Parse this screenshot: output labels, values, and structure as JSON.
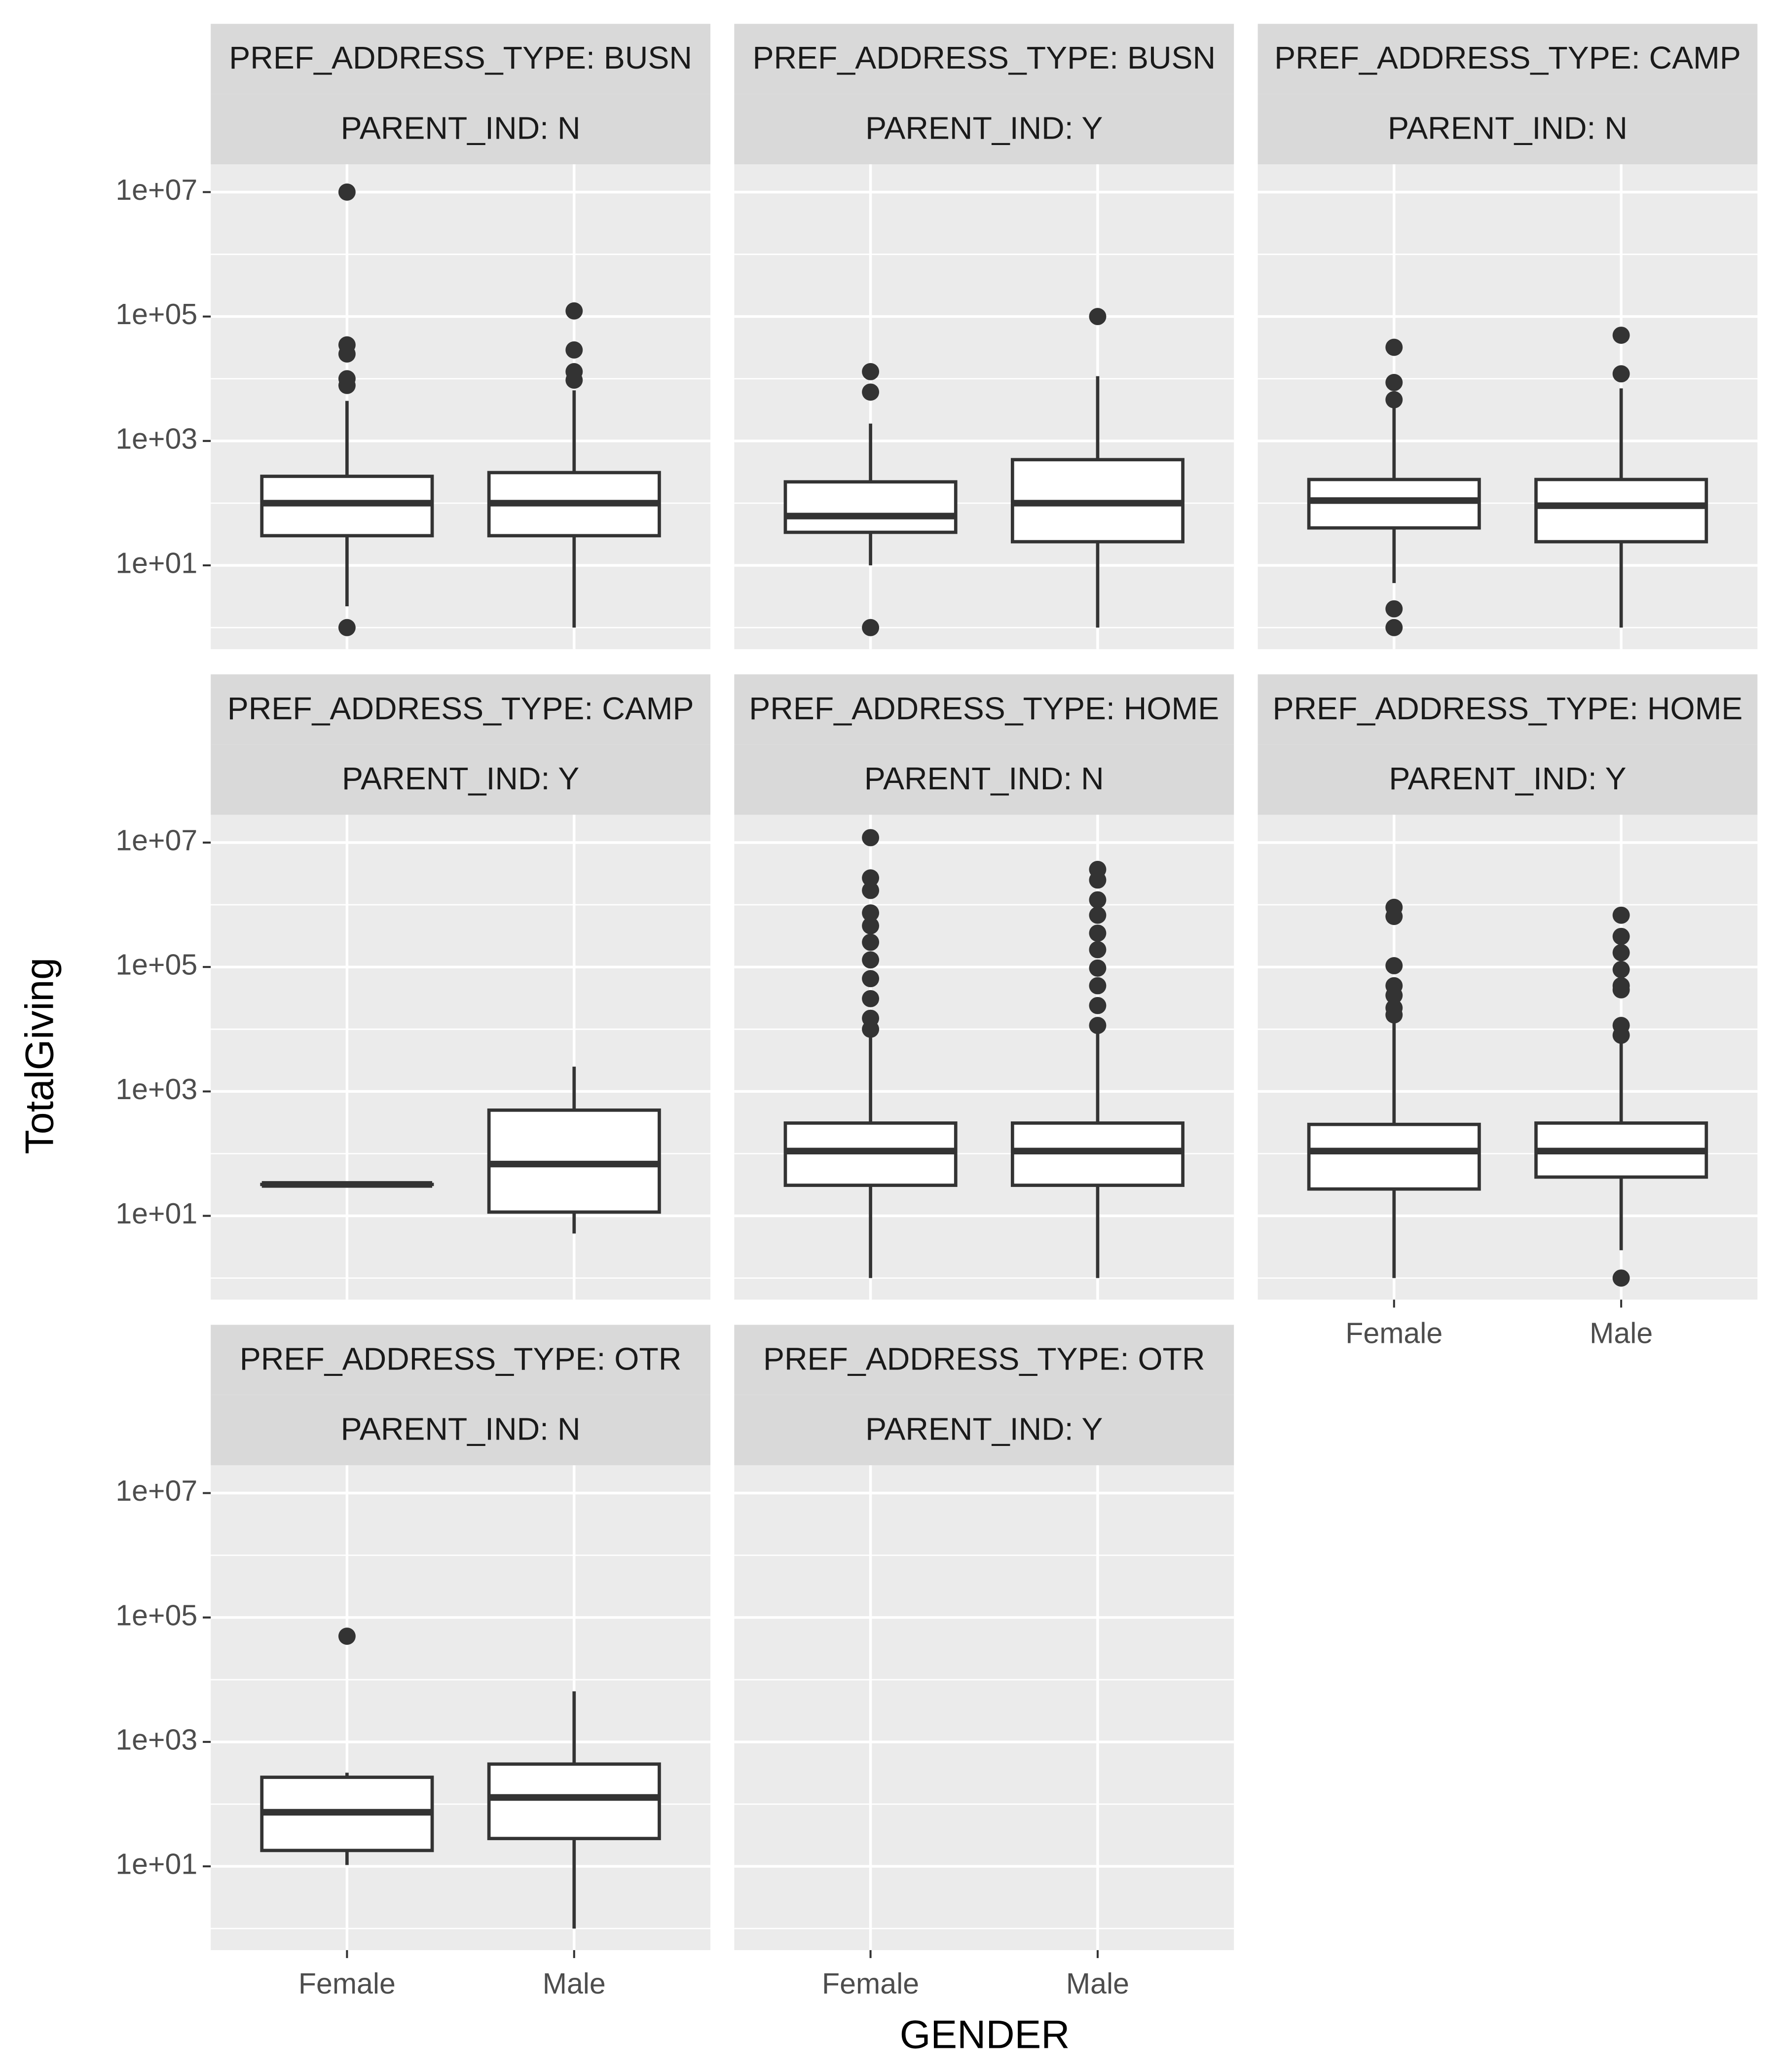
{
  "chart_data": {
    "type": "boxplot",
    "x_label": "GENDER",
    "y_label": "TotalGiving",
    "categories": [
      "Female",
      "Male"
    ],
    "log_scale": true,
    "grid": true,
    "ylim": [
      0.45,
      28000000
    ],
    "yticks": [
      {
        "value": 10,
        "label": "1e+01"
      },
      {
        "value": 1000,
        "label": "1e+03"
      },
      {
        "value": 100000,
        "label": "1e+05"
      },
      {
        "value": 10000000,
        "label": "1e+07"
      }
    ],
    "box_color": "#333333",
    "box_fill": "#ffffff",
    "panels": [
      {
        "strip": [
          "PREF_ADDRESS_TYPE: BUSN",
          "PARENT_IND: N"
        ],
        "boxes": [
          {
            "min": 2.2,
            "q1": 30,
            "median": 100,
            "q3": 270,
            "max": 4400,
            "outliers": [
              10000000,
              35000,
              25000,
              10000,
              7800,
              1
            ]
          },
          {
            "min": 1,
            "q1": 30,
            "median": 100,
            "q3": 310,
            "max": 6500,
            "outliers": [
              123000,
              29000,
              13000,
              9500
            ]
          }
        ]
      },
      {
        "strip": [
          "PREF_ADDRESS_TYPE: BUSN",
          "PARENT_IND: Y"
        ],
        "boxes": [
          {
            "min": 10,
            "q1": 34,
            "median": 62,
            "q3": 220,
            "max": 1900,
            "outliers": [
              13000,
              6100,
              1
            ]
          },
          {
            "min": 1,
            "q1": 24,
            "median": 100,
            "q3": 500,
            "max": 11000,
            "outliers": [
              100000
            ]
          }
        ]
      },
      {
        "strip": [
          "PREF_ADDRESS_TYPE: CAMP",
          "PARENT_IND: N"
        ],
        "boxes": [
          {
            "min": 5.2,
            "q1": 40,
            "median": 110,
            "q3": 240,
            "max": 4000,
            "outliers": [
              32000,
              8700,
              4600,
              2,
              1
            ]
          },
          {
            "min": 1,
            "q1": 24,
            "median": 91,
            "q3": 240,
            "max": 7000,
            "outliers": [
              50000,
              12000
            ]
          }
        ]
      },
      {
        "strip": [
          "PREF_ADDRESS_TYPE: CAMP",
          "PARENT_IND: Y"
        ],
        "boxes": [
          {
            "min": 32,
            "q1": 32,
            "median": 32,
            "q3": 32,
            "max": 32,
            "outliers": []
          },
          {
            "min": 5.2,
            "q1": 11.5,
            "median": 68,
            "q3": 500,
            "max": 2500,
            "outliers": []
          }
        ]
      },
      {
        "strip": [
          "PREF_ADDRESS_TYPE: HOME",
          "PARENT_IND: N"
        ],
        "boxes": [
          {
            "min": 1,
            "q1": 31,
            "median": 110,
            "q3": 310,
            "max": 9000,
            "outliers": [
              12000000,
              2700000,
              1700000,
              740000,
              460000,
              250000,
              130000,
              65000,
              31000,
              15000,
              10000
            ]
          },
          {
            "min": 1,
            "q1": 31,
            "median": 110,
            "q3": 310,
            "max": 9000,
            "outliers": [
              3700000,
              2500000,
              1200000,
              680000,
              350000,
              190000,
              96000,
              50000,
              24000,
              11500
            ]
          }
        ]
      },
      {
        "strip": [
          "PREF_ADDRESS_TYPE: HOME",
          "PARENT_IND: Y"
        ],
        "boxes": [
          {
            "min": 1,
            "q1": 27,
            "median": 110,
            "q3": 295,
            "max": 13500,
            "outliers": [
              910000,
              650000,
              105000,
              50000,
              35000,
              22000,
              17000
            ]
          },
          {
            "min": 2.8,
            "q1": 42,
            "median": 110,
            "q3": 310,
            "max": 6500,
            "outliers": [
              680000,
              310000,
              170000,
              91000,
              50000,
              43000,
              11500,
              8000,
              1
            ]
          }
        ]
      },
      {
        "strip": [
          "PREF_ADDRESS_TYPE: OTR",
          "PARENT_IND: N"
        ],
        "boxes": [
          {
            "min": 10.5,
            "q1": 18,
            "median": 74,
            "q3": 270,
            "max": 320,
            "outliers": [
              50000
            ]
          },
          {
            "min": 1,
            "q1": 28,
            "median": 128,
            "q3": 440,
            "max": 6500,
            "outliers": []
          }
        ]
      },
      {
        "strip": [
          "PREF_ADDRESS_TYPE: OTR",
          "PARENT_IND: Y"
        ],
        "boxes": []
      }
    ]
  }
}
